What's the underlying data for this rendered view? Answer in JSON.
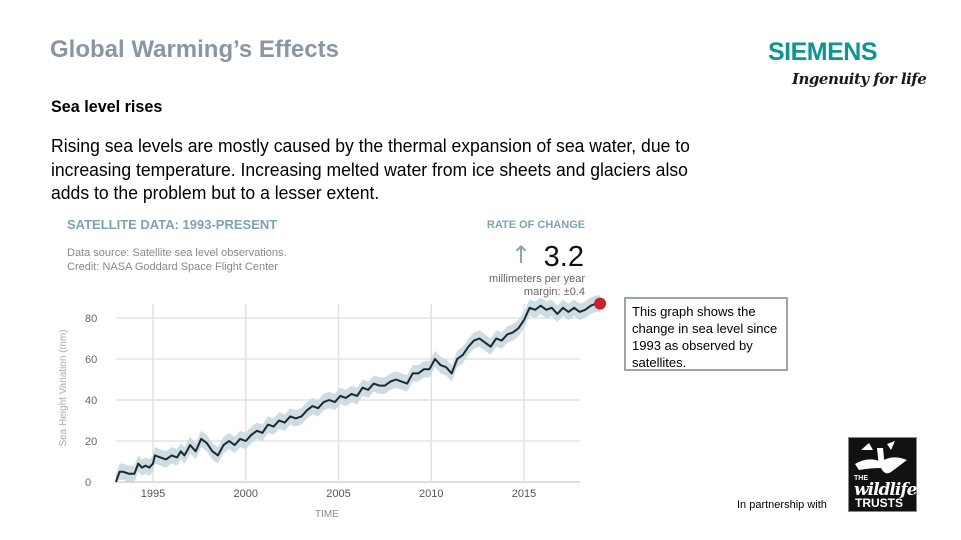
{
  "slide": {
    "title": "Global Warming’s Effects",
    "brand": {
      "name": "SIEMENS",
      "tagline": "Ingenuity for life",
      "color": "#0f9494"
    },
    "subtitle": "Sea level rises",
    "body": "Rising sea levels are mostly caused by the thermal expansion of sea water, due to increasing temperature.  Increasing melted water from ice sheets and glaciers also adds to the problem but to a lesser extent.",
    "note": "This graph shows the change in sea level since 1993 as observed by satellites.",
    "partner_label": "In partnership with",
    "partner_logo": {
      "the": "THE",
      "wildlife": "wildlife",
      "trusts": "TRUSTS",
      "icon": "badger-icon"
    }
  },
  "chart_data": {
    "type": "line",
    "title": "SATELLITE DATA: 1993-PRESENT",
    "source_lines": [
      "Data source: Satellite sea level observations.",
      "Credit: NASA Goddard Space Flight Center"
    ],
    "rate": {
      "label": "RATE OF CHANGE",
      "arrow": "↑",
      "value": "3.2",
      "unit": "millimeters per year",
      "margin": "margin: ±0.4"
    },
    "xlabel": "TIME",
    "ylabel": "Sea Height Variation (mm)",
    "xlim": [
      1993,
      2019.3
    ],
    "ylim": [
      0,
      85
    ],
    "xticks": [
      1995,
      2000,
      2005,
      2010,
      2015
    ],
    "yticks": [
      0,
      20,
      40,
      60,
      80
    ],
    "grid": true,
    "colors": {
      "line": "#1c2a2e",
      "band": "#c9d9e0",
      "title": "#7fa3ad",
      "endpoint": "#c8222a"
    },
    "uncertainty_mm": 4,
    "series": [
      {
        "name": "Sea height variation",
        "x": [
          1993.0,
          1993.2,
          1993.4,
          1993.7,
          1994.0,
          1994.2,
          1994.4,
          1994.6,
          1994.8,
          1995.0,
          1995.1,
          1995.4,
          1995.7,
          1996.0,
          1996.3,
          1996.5,
          1996.7,
          1997.0,
          1997.3,
          1997.6,
          1997.9,
          1998.2,
          1998.5,
          1998.8,
          1999.1,
          1999.4,
          1999.7,
          2000.0,
          2000.3,
          2000.6,
          2000.9,
          2001.2,
          2001.5,
          2001.8,
          2002.1,
          2002.4,
          2002.7,
          2003.0,
          2003.3,
          2003.6,
          2003.9,
          2004.2,
          2004.5,
          2004.8,
          2005.1,
          2005.4,
          2005.7,
          2006.0,
          2006.3,
          2006.6,
          2006.9,
          2007.2,
          2007.5,
          2007.8,
          2008.1,
          2008.4,
          2008.7,
          2009.0,
          2009.3,
          2009.6,
          2009.9,
          2010.2,
          2010.5,
          2010.8,
          2011.1,
          2011.4,
          2011.7,
          2012.0,
          2012.3,
          2012.6,
          2012.9,
          2013.2,
          2013.5,
          2013.8,
          2014.1,
          2014.4,
          2014.7,
          2015.0,
          2015.3,
          2015.6,
          2015.9,
          2016.2,
          2016.5,
          2016.8,
          2017.1,
          2017.4,
          2017.7,
          2018.0,
          2018.3,
          2018.6,
          2018.9,
          2019.1
        ],
        "values": [
          0,
          5,
          5,
          4,
          4,
          9,
          7,
          8,
          7,
          9,
          13,
          12,
          11,
          13,
          12,
          15,
          13,
          18,
          15,
          21,
          19,
          15,
          13,
          18,
          20,
          18,
          21,
          20,
          23,
          25,
          24,
          28,
          27,
          30,
          29,
          32,
          31,
          32,
          35,
          37,
          36,
          39,
          40,
          39,
          42,
          41,
          43,
          42,
          46,
          45,
          48,
          47,
          47,
          49,
          50,
          49,
          48,
          53,
          53,
          55,
          55,
          60,
          57,
          56,
          53,
          60,
          62,
          66,
          69,
          70,
          68,
          66,
          70,
          69,
          72,
          73,
          75,
          79,
          85,
          84,
          86,
          84,
          85,
          82,
          85,
          83,
          85,
          83,
          84,
          86,
          87,
          87
        ]
      }
    ]
  }
}
